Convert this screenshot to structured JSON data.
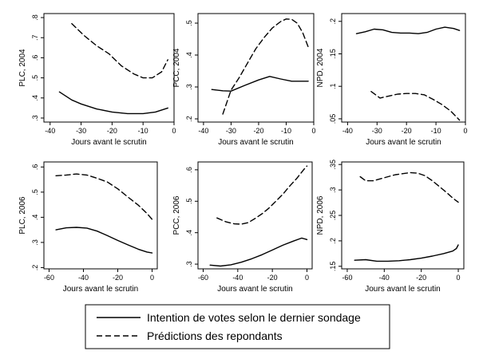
{
  "chart_data": [
    {
      "type": "line",
      "title": "",
      "xlabel": "Jours avant le scrutin",
      "ylabel": "PLC, 2004",
      "xlim": [
        -42,
        0
      ],
      "ylim": [
        0.28,
        0.82
      ],
      "xticks": [
        -40,
        -30,
        -20,
        -10,
        0
      ],
      "yticks": [
        0.3,
        0.4,
        0.5,
        0.6,
        0.7,
        0.8
      ],
      "ytick_labels": [
        ".3",
        ".4",
        ".5",
        ".6",
        ".7",
        ".8"
      ],
      "series": [
        {
          "style": "solid",
          "x": [
            -37,
            -33,
            -30,
            -25,
            -20,
            -15,
            -10,
            -6,
            -2
          ],
          "y": [
            0.43,
            0.39,
            0.37,
            0.345,
            0.33,
            0.322,
            0.322,
            0.33,
            0.35
          ]
        },
        {
          "style": "dashed",
          "x": [
            -33,
            -29,
            -25,
            -21,
            -17,
            -13,
            -10,
            -7,
            -4,
            -2
          ],
          "y": [
            0.77,
            0.71,
            0.66,
            0.62,
            0.56,
            0.52,
            0.5,
            0.5,
            0.53,
            0.59
          ]
        }
      ]
    },
    {
      "type": "line",
      "title": "",
      "xlabel": "Jours avant le scrutin",
      "ylabel": "PCC, 2004",
      "xlim": [
        -42,
        0
      ],
      "ylim": [
        0.19,
        0.53
      ],
      "xticks": [
        -40,
        -30,
        -20,
        -10,
        0
      ],
      "yticks": [
        0.2,
        0.3,
        0.4,
        0.5
      ],
      "ytick_labels": [
        ".2",
        ".3",
        ".4",
        ".5"
      ],
      "series": [
        {
          "style": "solid",
          "x": [
            -37,
            -33,
            -30,
            -25,
            -20,
            -16,
            -12,
            -8,
            -5,
            -2
          ],
          "y": [
            0.292,
            0.288,
            0.287,
            0.305,
            0.322,
            0.333,
            0.325,
            0.318,
            0.318,
            0.318
          ]
        },
        {
          "style": "dashed",
          "x": [
            -33,
            -30,
            -27,
            -24,
            -21,
            -18,
            -15,
            -12,
            -10,
            -8,
            -6,
            -4,
            -2
          ],
          "y": [
            0.215,
            0.29,
            0.33,
            0.375,
            0.42,
            0.455,
            0.485,
            0.505,
            0.513,
            0.512,
            0.5,
            0.47,
            0.425
          ]
        }
      ]
    },
    {
      "type": "line",
      "title": "",
      "xlabel": "Jours avant le scrutin",
      "ylabel": "NPD, 2004",
      "xlim": [
        -42,
        0
      ],
      "ylim": [
        0.045,
        0.212
      ],
      "xticks": [
        -40,
        -30,
        -20,
        -10,
        0
      ],
      "yticks": [
        0.05,
        0.1,
        0.15,
        0.2
      ],
      "ytick_labels": [
        ".05",
        ".1",
        ".15",
        ".2"
      ],
      "series": [
        {
          "style": "solid",
          "x": [
            -37,
            -34,
            -31,
            -28,
            -25,
            -22,
            -19,
            -16,
            -13,
            -10,
            -7,
            -4,
            -2
          ],
          "y": [
            0.181,
            0.184,
            0.188,
            0.187,
            0.183,
            0.182,
            0.182,
            0.181,
            0.183,
            0.188,
            0.191,
            0.189,
            0.186
          ]
        },
        {
          "style": "dashed",
          "x": [
            -32,
            -29,
            -26,
            -23,
            -20,
            -17,
            -14,
            -11,
            -8,
            -5,
            -2
          ],
          "y": [
            0.092,
            0.082,
            0.085,
            0.088,
            0.089,
            0.089,
            0.087,
            0.08,
            0.072,
            0.062,
            0.048
          ]
        }
      ]
    },
    {
      "type": "line",
      "title": "",
      "xlabel": "Jours avant le scrutin",
      "ylabel": "PLC, 2006",
      "xlim": [
        -63,
        3
      ],
      "ylim": [
        0.195,
        0.62
      ],
      "xticks": [
        -60,
        -40,
        -20,
        0
      ],
      "yticks": [
        0.2,
        0.3,
        0.4,
        0.5,
        0.6
      ],
      "ytick_labels": [
        ".2",
        ".3",
        ".4",
        ".5",
        ".6"
      ],
      "series": [
        {
          "style": "solid",
          "x": [
            -56,
            -50,
            -44,
            -38,
            -32,
            -26,
            -20,
            -14,
            -8,
            -3,
            0
          ],
          "y": [
            0.35,
            0.358,
            0.36,
            0.357,
            0.345,
            0.327,
            0.308,
            0.29,
            0.273,
            0.262,
            0.258
          ]
        },
        {
          "style": "dashed",
          "x": [
            -56,
            -50,
            -44,
            -38,
            -32,
            -26,
            -20,
            -14,
            -8,
            -3,
            0
          ],
          "y": [
            0.565,
            0.568,
            0.572,
            0.568,
            0.555,
            0.54,
            0.513,
            0.48,
            0.448,
            0.415,
            0.392
          ]
        }
      ]
    },
    {
      "type": "line",
      "title": "",
      "xlabel": "Jours avant le scrutin",
      "ylabel": "PCC, 2006",
      "xlim": [
        -63,
        3
      ],
      "ylim": [
        0.285,
        0.625
      ],
      "xticks": [
        -60,
        -40,
        -20,
        0
      ],
      "yticks": [
        0.3,
        0.4,
        0.5,
        0.6
      ],
      "ytick_labels": [
        ".3",
        ".4",
        ".5",
        ".6"
      ],
      "series": [
        {
          "style": "solid",
          "x": [
            -56,
            -50,
            -44,
            -38,
            -32,
            -26,
            -20,
            -14,
            -8,
            -3,
            0
          ],
          "y": [
            0.297,
            0.294,
            0.298,
            0.306,
            0.317,
            0.33,
            0.345,
            0.36,
            0.373,
            0.383,
            0.378
          ]
        },
        {
          "style": "dashed",
          "x": [
            -52,
            -47,
            -42,
            -38,
            -34,
            -30,
            -26,
            -22,
            -18,
            -14,
            -10,
            -6,
            -2,
            0
          ],
          "y": [
            0.447,
            0.435,
            0.428,
            0.427,
            0.432,
            0.445,
            0.46,
            0.478,
            0.5,
            0.522,
            0.548,
            0.572,
            0.6,
            0.612
          ]
        }
      ]
    },
    {
      "type": "line",
      "title": "",
      "xlabel": "Jours avant le scrutin",
      "ylabel": "NPD, 2006",
      "xlim": [
        -63,
        3
      ],
      "ylim": [
        0.145,
        0.355
      ],
      "xticks": [
        -60,
        -40,
        -20,
        0
      ],
      "yticks": [
        0.15,
        0.2,
        0.25,
        0.3,
        0.35
      ],
      "ytick_labels": [
        ".15",
        ".2",
        ".25",
        ".3",
        ".35"
      ],
      "series": [
        {
          "style": "solid",
          "x": [
            -56,
            -50,
            -44,
            -38,
            -32,
            -26,
            -20,
            -14,
            -8,
            -3,
            -1,
            0
          ],
          "y": [
            0.162,
            0.163,
            0.16,
            0.16,
            0.161,
            0.163,
            0.166,
            0.17,
            0.175,
            0.18,
            0.185,
            0.192
          ]
        },
        {
          "style": "dashed",
          "x": [
            -53,
            -50,
            -46,
            -42,
            -38,
            -34,
            -30,
            -26,
            -22,
            -18,
            -14,
            -10,
            -6,
            -3,
            0
          ],
          "y": [
            0.326,
            0.318,
            0.318,
            0.322,
            0.326,
            0.33,
            0.332,
            0.334,
            0.333,
            0.328,
            0.318,
            0.306,
            0.294,
            0.284,
            0.276
          ]
        }
      ]
    }
  ],
  "legend": {
    "items": [
      {
        "label": "Intention de votes selon le dernier sondage",
        "style": "solid"
      },
      {
        "label": "Prédictions des repondants",
        "style": "dashed"
      }
    ]
  }
}
